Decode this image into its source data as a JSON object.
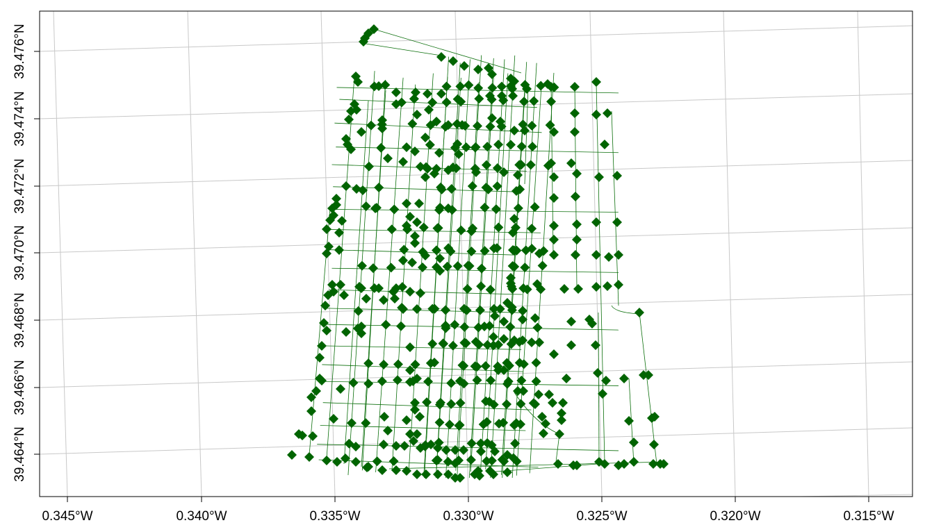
{
  "map": {
    "x_ticks": [
      {
        "value": -0.345,
        "label": "0.345°W"
      },
      {
        "value": -0.34,
        "label": "0.340°W"
      },
      {
        "value": -0.335,
        "label": "0.335°W"
      },
      {
        "value": -0.33,
        "label": "0.330°W"
      },
      {
        "value": -0.325,
        "label": "0.325°W"
      },
      {
        "value": -0.32,
        "label": "0.320°W"
      },
      {
        "value": -0.315,
        "label": "0.315°W"
      }
    ],
    "y_ticks": [
      {
        "value": 39.464,
        "label": "39.464°N"
      },
      {
        "value": 39.466,
        "label": "39.466°N"
      },
      {
        "value": 39.468,
        "label": "39.468°N"
      },
      {
        "value": 39.47,
        "label": "39.470°N"
      },
      {
        "value": 39.472,
        "label": "39.472°N"
      },
      {
        "value": 39.474,
        "label": "39.474°N"
      },
      {
        "value": 39.476,
        "label": "39.476°N"
      }
    ],
    "xlim": [
      -0.3463,
      -0.3133
    ],
    "ylim": [
      39.4625,
      39.4773
    ],
    "grid": true,
    "colors": {
      "node": "#006400",
      "edge": "#0a6e0a",
      "grid": "#c8c8c8",
      "frame": "#000000"
    },
    "node_shape": "diamond"
  }
}
